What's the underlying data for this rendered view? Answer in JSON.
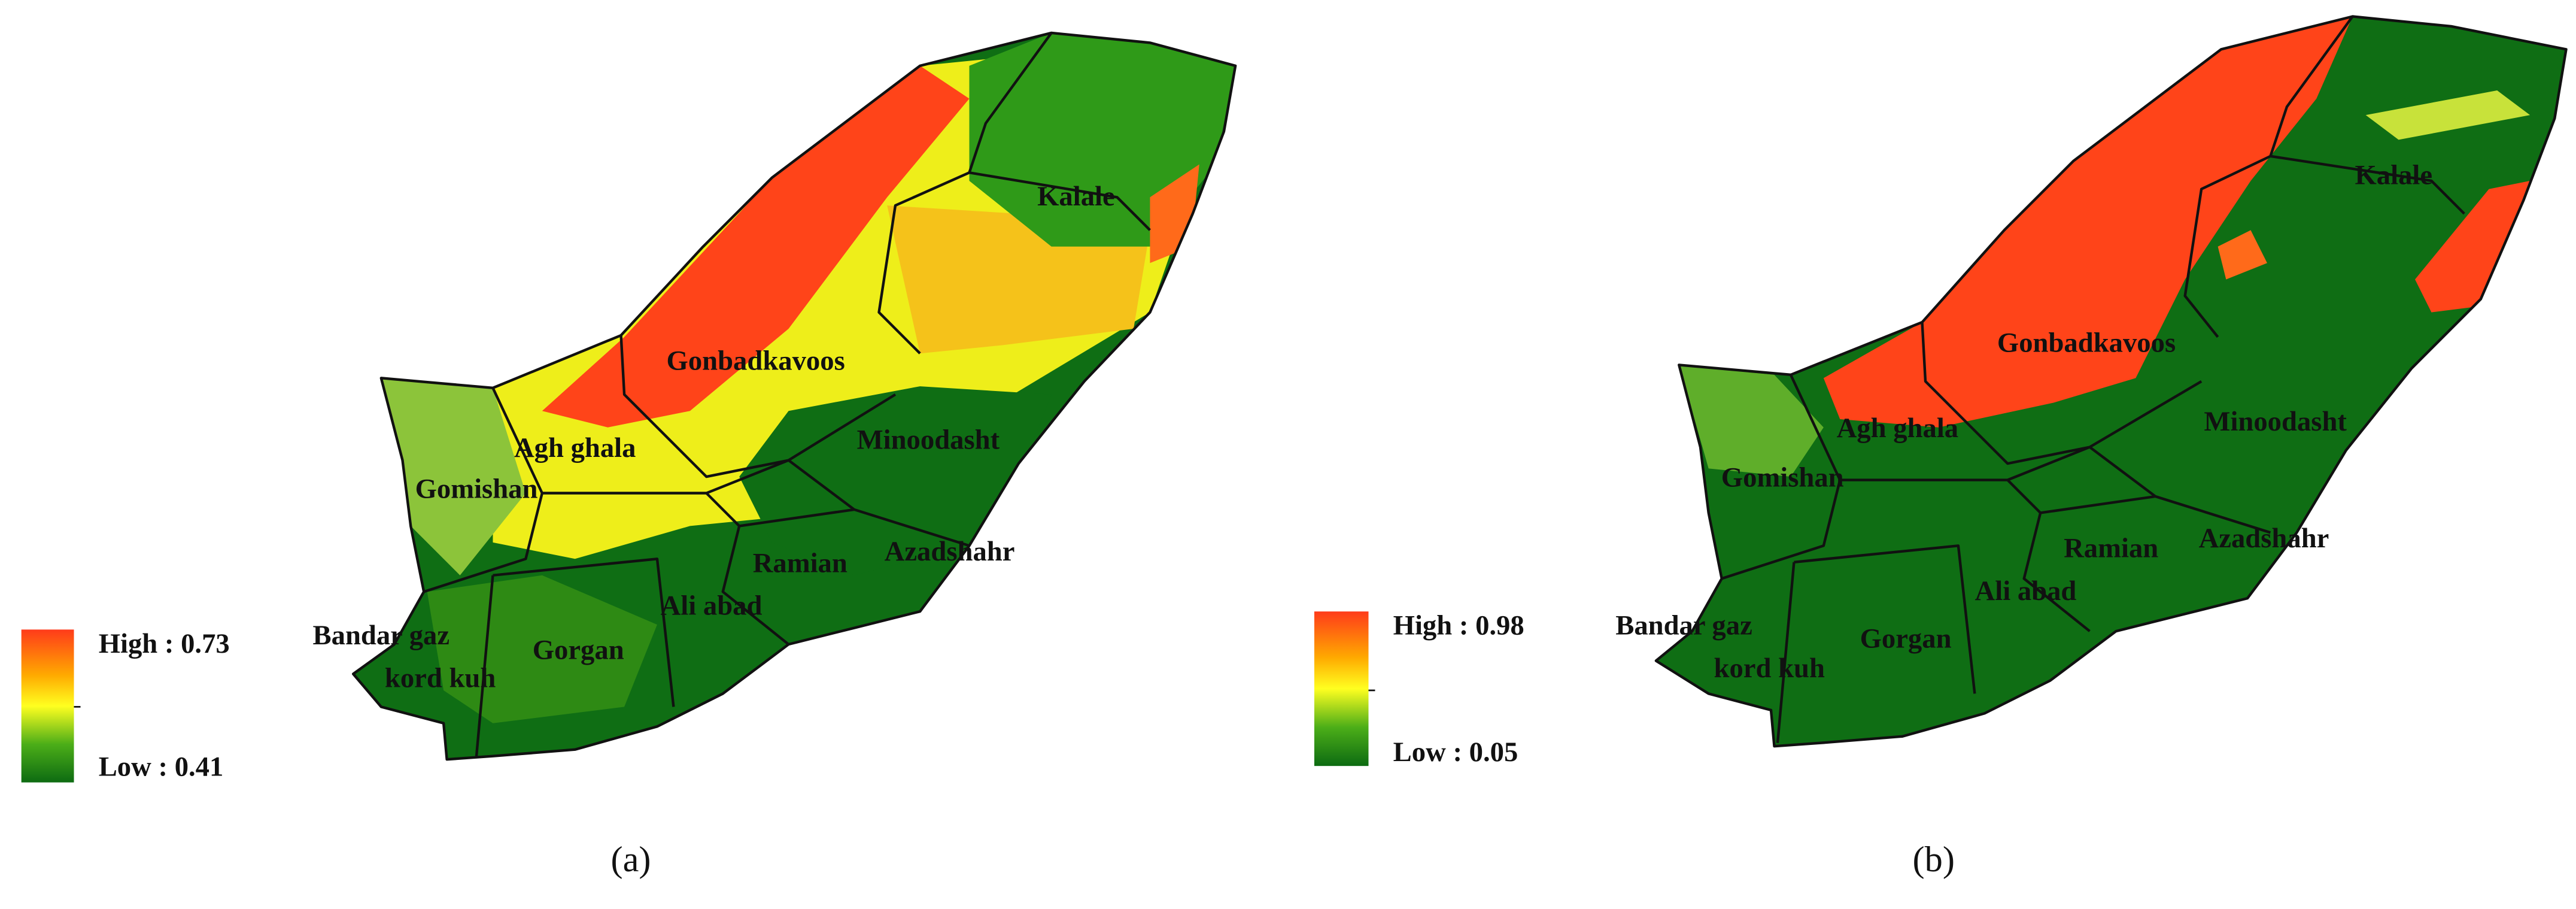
{
  "panels": [
    {
      "caption": "(a)",
      "legend": {
        "high": "High : 0.73",
        "low": "Low : 0.41"
      },
      "districts": [
        "Kalale",
        "Gonbadkavoos",
        "Minoodasht",
        "Agh ghala",
        "Gomishan",
        "Azadshahr",
        "Ramian",
        "Ali abad",
        "Bandar gaz",
        "kord kuh",
        "Gorgan"
      ]
    },
    {
      "caption": "(b)",
      "legend": {
        "high": "High : 0.98",
        "low": "Low : 0.05"
      },
      "districts": [
        "Kalale",
        "Gonbadkavoos",
        "Minoodasht",
        "Agh ghala",
        "Gomishan",
        "Azadshahr",
        "Ramian",
        "Ali abad",
        "Bandar gaz",
        "kord kuh",
        "Gorgan"
      ]
    }
  ]
}
